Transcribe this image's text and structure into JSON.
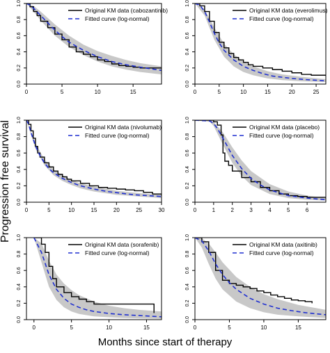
{
  "figure": {
    "ylabel": "Progression free survival",
    "xlabel": "Months since start of therapy"
  },
  "legend_fitted": "Fitted curve (log-normal)",
  "colors": {
    "km": "#000000",
    "fitted": "#1f2fd0",
    "band": "#c8c8c8"
  },
  "chart_data": [
    {
      "type": "line",
      "xlim": [
        0,
        19
      ],
      "ylim": [
        0,
        1
      ],
      "xticks": [
        0,
        5,
        10,
        15
      ],
      "yticks": [
        0.0,
        0.2,
        0.4,
        0.6,
        0.8,
        1.0
      ],
      "legend_position": "top-right",
      "series": [
        {
          "name": "Original KM data (cabozantinib)",
          "style": "step",
          "x": [
            0,
            0.5,
            1,
            1.5,
            2,
            3,
            4,
            5,
            6,
            7,
            8,
            9,
            10,
            11,
            12,
            13,
            14,
            15,
            16,
            17,
            18,
            19
          ],
          "y": [
            1.0,
            0.96,
            0.9,
            0.85,
            0.78,
            0.7,
            0.62,
            0.55,
            0.46,
            0.4,
            0.37,
            0.34,
            0.3,
            0.28,
            0.25,
            0.23,
            0.22,
            0.21,
            0.2,
            0.2,
            0.2,
            0.19
          ]
        },
        {
          "name": "Fitted curve (log-normal)",
          "style": "dashed",
          "x": [
            0,
            0.5,
            1,
            2,
            3,
            4,
            5,
            6,
            8,
            10,
            12,
            14,
            16,
            19
          ],
          "y": [
            1.0,
            0.98,
            0.94,
            0.85,
            0.76,
            0.67,
            0.59,
            0.52,
            0.42,
            0.34,
            0.28,
            0.24,
            0.21,
            0.17
          ]
        }
      ],
      "band": {
        "x": [
          0,
          1,
          2,
          4,
          6,
          8,
          10,
          12,
          14,
          16,
          19
        ],
        "lower": [
          1.0,
          0.9,
          0.79,
          0.6,
          0.46,
          0.36,
          0.28,
          0.22,
          0.18,
          0.15,
          0.12
        ],
        "upper": [
          1.0,
          0.97,
          0.9,
          0.74,
          0.6,
          0.49,
          0.41,
          0.35,
          0.3,
          0.26,
          0.22
        ]
      }
    },
    {
      "type": "line",
      "xlim": [
        0,
        27
      ],
      "ylim": [
        0,
        1
      ],
      "xticks": [
        0,
        5,
        10,
        15,
        20,
        25
      ],
      "yticks": [
        0.0,
        0.2,
        0.4,
        0.6,
        0.8,
        1.0
      ],
      "legend_position": "top-right",
      "series": [
        {
          "name": "Original KM data (everolimus)",
          "style": "step",
          "x": [
            0,
            1,
            2,
            3,
            4,
            5,
            6,
            7,
            8,
            9,
            10,
            11,
            12,
            14,
            16,
            18,
            20,
            22,
            24,
            27
          ],
          "y": [
            1.0,
            0.97,
            0.9,
            0.78,
            0.64,
            0.52,
            0.45,
            0.38,
            0.33,
            0.3,
            0.27,
            0.24,
            0.22,
            0.2,
            0.18,
            0.16,
            0.14,
            0.12,
            0.11,
            0.1
          ]
        },
        {
          "name": "Fitted curve (log-normal)",
          "style": "dashed",
          "x": [
            0,
            1,
            2,
            3,
            4,
            5,
            6,
            8,
            10,
            12,
            14,
            16,
            18,
            20,
            23,
            27
          ],
          "y": [
            1.0,
            0.98,
            0.9,
            0.77,
            0.63,
            0.51,
            0.42,
            0.3,
            0.22,
            0.17,
            0.13,
            0.1,
            0.085,
            0.07,
            0.055,
            0.04
          ]
        }
      ],
      "band": {
        "x": [
          0,
          2,
          4,
          6,
          8,
          10,
          12,
          15,
          18,
          22,
          27
        ],
        "lower": [
          1.0,
          0.85,
          0.55,
          0.34,
          0.22,
          0.15,
          0.11,
          0.07,
          0.05,
          0.035,
          0.025
        ],
        "upper": [
          1.0,
          0.93,
          0.7,
          0.5,
          0.37,
          0.28,
          0.22,
          0.16,
          0.12,
          0.09,
          0.06
        ]
      }
    },
    {
      "type": "line",
      "xlim": [
        0,
        30
      ],
      "ylim": [
        0,
        1
      ],
      "xticks": [
        0,
        5,
        10,
        15,
        20,
        25,
        30
      ],
      "yticks": [
        0.0,
        0.2,
        0.4,
        0.6,
        0.8,
        1.0
      ],
      "legend_position": "top-right",
      "series": [
        {
          "name": "Original KM data (nivolumab)",
          "style": "step",
          "x": [
            0,
            0.5,
            1,
            1.5,
            2,
            2.5,
            3,
            4,
            5,
            6,
            7,
            8,
            9,
            10,
            12,
            14,
            16,
            18,
            20,
            22,
            24,
            26,
            28,
            30
          ],
          "y": [
            1.0,
            0.95,
            0.87,
            0.78,
            0.68,
            0.6,
            0.55,
            0.48,
            0.43,
            0.38,
            0.34,
            0.31,
            0.28,
            0.26,
            0.23,
            0.2,
            0.18,
            0.17,
            0.16,
            0.15,
            0.14,
            0.12,
            0.1,
            0.08
          ]
        },
        {
          "name": "Fitted curve (log-normal)",
          "style": "dashed",
          "x": [
            0,
            0.5,
            1,
            2,
            3,
            4,
            5,
            6,
            8,
            10,
            12,
            15,
            18,
            21,
            24,
            27,
            30
          ],
          "y": [
            1.0,
            0.95,
            0.85,
            0.69,
            0.57,
            0.48,
            0.41,
            0.36,
            0.29,
            0.24,
            0.2,
            0.16,
            0.13,
            0.11,
            0.09,
            0.08,
            0.07
          ]
        }
      ],
      "band": {
        "x": [
          0,
          2,
          4,
          6,
          8,
          10,
          12,
          15,
          20,
          25,
          30
        ],
        "lower": [
          1.0,
          0.65,
          0.45,
          0.33,
          0.26,
          0.21,
          0.17,
          0.13,
          0.09,
          0.07,
          0.05
        ],
        "upper": [
          1.0,
          0.72,
          0.52,
          0.4,
          0.33,
          0.27,
          0.23,
          0.19,
          0.14,
          0.11,
          0.09
        ]
      }
    },
    {
      "type": "line",
      "xlim": [
        0,
        7
      ],
      "ylim": [
        0,
        1
      ],
      "xticks": [
        0,
        1,
        2,
        3,
        4,
        5,
        6
      ],
      "yticks": [
        0.0,
        0.2,
        0.4,
        0.6,
        0.8,
        1.0
      ],
      "legend_position": "top-right",
      "series": [
        {
          "name": "Original KM data (placebo)",
          "style": "step",
          "x": [
            0,
            1,
            1.2,
            1.4,
            1.5,
            1.6,
            1.8,
            2,
            2.5,
            3,
            3.5,
            4,
            4.5,
            5,
            5.5,
            6,
            7
          ],
          "y": [
            1.0,
            0.98,
            0.94,
            0.82,
            0.6,
            0.5,
            0.45,
            0.38,
            0.3,
            0.25,
            0.18,
            0.14,
            0.1,
            0.08,
            0.07,
            0.06,
            0.05
          ]
        },
        {
          "name": "Fitted curve (log-normal)",
          "style": "dashed",
          "x": [
            0,
            0.8,
            1,
            1.2,
            1.5,
            2,
            2.5,
            3,
            3.5,
            4,
            5,
            6,
            7
          ],
          "y": [
            1.0,
            0.99,
            0.96,
            0.9,
            0.78,
            0.57,
            0.41,
            0.29,
            0.21,
            0.15,
            0.08,
            0.05,
            0.03
          ]
        }
      ],
      "band": {
        "x": [
          0,
          0.8,
          1,
          1.5,
          2,
          2.5,
          3,
          4,
          5,
          6,
          7
        ],
        "lower": [
          1.0,
          0.98,
          0.93,
          0.7,
          0.48,
          0.32,
          0.21,
          0.1,
          0.05,
          0.03,
          0.02
        ],
        "upper": [
          1.0,
          1.0,
          0.98,
          0.85,
          0.67,
          0.51,
          0.38,
          0.22,
          0.13,
          0.08,
          0.05
        ]
      }
    },
    {
      "type": "line",
      "xlim": [
        -1,
        17
      ],
      "ylim": [
        0,
        1
      ],
      "xticks": [
        0,
        5,
        10,
        15
      ],
      "yticks": [
        0.0,
        0.2,
        0.4,
        0.6,
        0.8,
        1.0
      ],
      "legend_position": "top-right",
      "series": [
        {
          "name": "Original KM data (sorafenib)",
          "style": "step",
          "x": [
            0,
            1,
            1.5,
            2,
            2.5,
            3,
            4,
            5,
            6,
            7,
            8,
            10,
            12,
            14,
            16
          ],
          "y": [
            1.0,
            0.92,
            0.82,
            0.65,
            0.5,
            0.4,
            0.33,
            0.28,
            0.25,
            0.22,
            0.19,
            0.19,
            0.19,
            0.19,
            0.08
          ]
        },
        {
          "name": "Fitted curve (log-normal)",
          "style": "dashed",
          "x": [
            0,
            1,
            2,
            3,
            4,
            5,
            6,
            7,
            8,
            10,
            12,
            14,
            16,
            17
          ],
          "y": [
            1.0,
            0.82,
            0.55,
            0.37,
            0.26,
            0.19,
            0.15,
            0.12,
            0.1,
            0.075,
            0.06,
            0.05,
            0.04,
            0.035
          ]
        }
      ],
      "band": {
        "x": [
          0,
          1,
          2,
          3,
          4,
          5,
          6,
          8,
          10,
          12,
          14,
          17
        ],
        "lower": [
          1.0,
          0.7,
          0.4,
          0.24,
          0.15,
          0.1,
          0.07,
          0.04,
          0.03,
          0.02,
          0.015,
          0.01
        ],
        "upper": [
          1.0,
          0.93,
          0.72,
          0.55,
          0.44,
          0.36,
          0.3,
          0.22,
          0.17,
          0.14,
          0.12,
          0.1
        ]
      }
    },
    {
      "type": "line",
      "xlim": [
        0,
        19
      ],
      "ylim": [
        0,
        1
      ],
      "xticks": [
        0,
        5,
        10,
        15
      ],
      "yticks": [
        0.0,
        0.2,
        0.4,
        0.6,
        0.8,
        1.0
      ],
      "legend_position": "top-right",
      "series": [
        {
          "name": "Original KM data (axitinib)",
          "style": "step",
          "x": [
            0,
            1,
            2,
            3,
            4,
            5,
            6,
            7,
            8,
            9,
            10,
            11,
            12,
            13,
            14,
            15,
            16,
            17
          ],
          "y": [
            1.0,
            0.95,
            0.82,
            0.6,
            0.48,
            0.44,
            0.42,
            0.4,
            0.38,
            0.35,
            0.33,
            0.3,
            0.28,
            0.26,
            0.24,
            0.23,
            0.22,
            0.2
          ]
        },
        {
          "name": "Fitted curve (log-normal)",
          "style": "dashed",
          "x": [
            0,
            1,
            2,
            3,
            4,
            5,
            6,
            8,
            10,
            12,
            14,
            16,
            19
          ],
          "y": [
            1.0,
            0.96,
            0.84,
            0.68,
            0.55,
            0.45,
            0.37,
            0.26,
            0.19,
            0.14,
            0.11,
            0.085,
            0.06
          ]
        }
      ],
      "band": {
        "x": [
          0,
          1,
          2,
          3,
          4,
          6,
          8,
          10,
          12,
          15,
          19
        ],
        "lower": [
          1.0,
          0.88,
          0.68,
          0.5,
          0.37,
          0.22,
          0.14,
          0.09,
          0.06,
          0.04,
          0.02
        ],
        "upper": [
          1.0,
          0.99,
          0.93,
          0.82,
          0.7,
          0.52,
          0.4,
          0.31,
          0.25,
          0.18,
          0.12
        ]
      }
    }
  ]
}
